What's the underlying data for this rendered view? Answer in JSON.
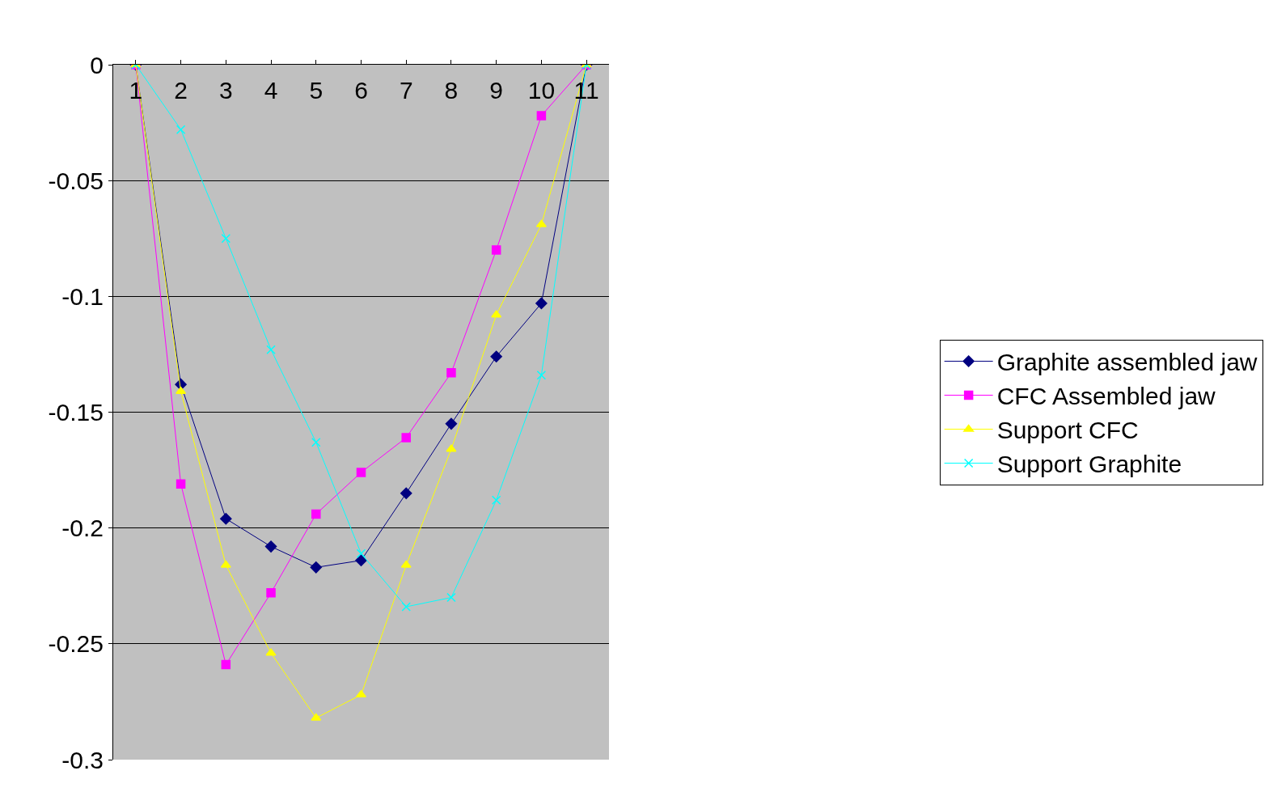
{
  "chart_data": {
    "type": "line",
    "categories": [
      "1",
      "2",
      "3",
      "4",
      "5",
      "6",
      "7",
      "8",
      "9",
      "10",
      "11"
    ],
    "series": [
      {
        "name": "Graphite assembled jaw",
        "color": "#000080",
        "marker": "diamond",
        "values": [
          0,
          -0.138,
          -0.196,
          -0.208,
          -0.217,
          -0.214,
          -0.185,
          -0.155,
          -0.126,
          -0.103,
          0
        ]
      },
      {
        "name": "CFC Assembled jaw",
        "color": "#ff00ff",
        "marker": "square",
        "values": [
          0,
          -0.181,
          -0.259,
          -0.228,
          -0.194,
          -0.176,
          -0.161,
          -0.133,
          -0.08,
          -0.022,
          0
        ]
      },
      {
        "name": "Support CFC",
        "color": "#ffff00",
        "marker": "triangle",
        "values": [
          0,
          -0.141,
          -0.216,
          -0.254,
          -0.282,
          -0.272,
          -0.216,
          -0.166,
          -0.108,
          -0.069,
          0
        ]
      },
      {
        "name": "Support Graphite",
        "color": "#00ffff",
        "marker": "cross",
        "values": [
          0,
          -0.028,
          -0.075,
          -0.123,
          -0.163,
          -0.211,
          -0.234,
          -0.23,
          -0.188,
          -0.134,
          0
        ]
      }
    ],
    "ylim": [
      -0.3,
      0
    ],
    "yticks": [
      {
        "value": 0,
        "label": "0"
      },
      {
        "value": -0.05,
        "label": "-0.05"
      },
      {
        "value": -0.1,
        "label": "-0.1"
      },
      {
        "value": -0.15,
        "label": "-0.15"
      },
      {
        "value": -0.2,
        "label": "-0.2"
      },
      {
        "value": -0.25,
        "label": "-0.25"
      },
      {
        "value": -0.3,
        "label": "-0.3"
      }
    ],
    "grid": "y",
    "legend": "right",
    "line_style": "solid"
  }
}
